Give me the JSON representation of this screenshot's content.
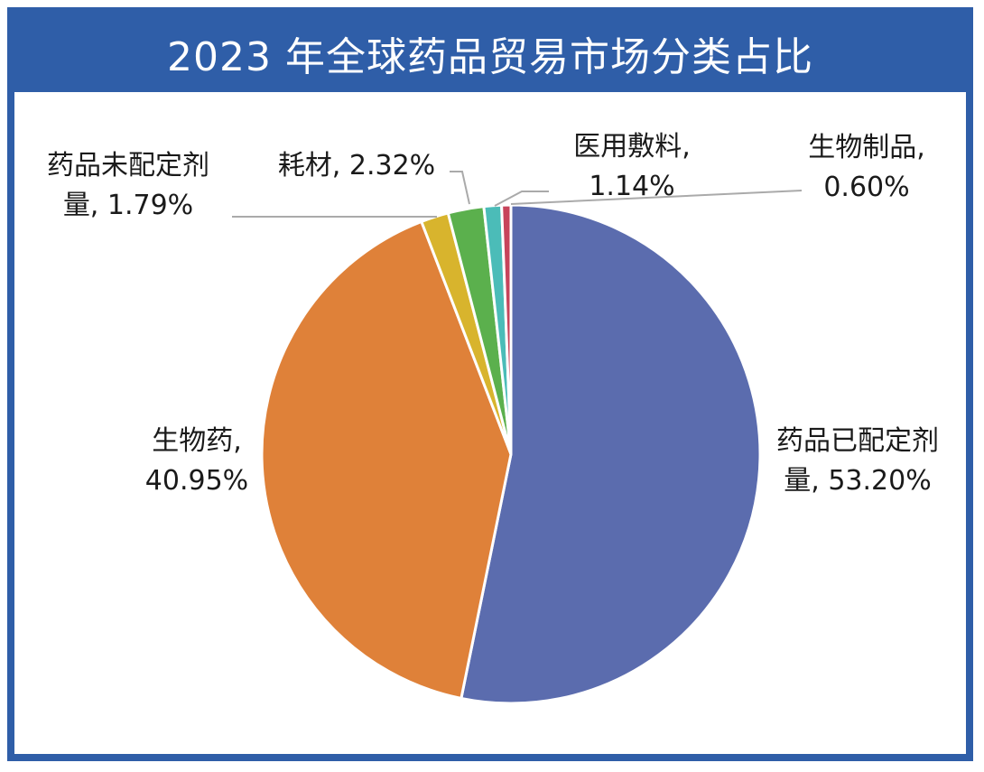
{
  "title": "2023 年全球药品贸易市场分类占比",
  "colors": {
    "frame": "#2f5ea8",
    "title_text": "#ffffff",
    "label_text": "#1a1a1a",
    "leader_line": "#aaaaaa"
  },
  "chart_data": {
    "type": "pie",
    "slices": [
      {
        "label": "药品已配定剂量",
        "value": 53.2,
        "display": "药品已配定剂\n量, 53.20%",
        "color": "#5b6cae"
      },
      {
        "label": "生物药",
        "value": 40.95,
        "display": "生物药,\n40.95%",
        "color": "#df8139"
      },
      {
        "label": "药品未配定剂量",
        "value": 1.79,
        "display": "药品未配定剂\n量, 1.79%",
        "color": "#d8b42d"
      },
      {
        "label": "耗材",
        "value": 2.32,
        "display": "耗材, 2.32%",
        "color": "#5bb04d"
      },
      {
        "label": "医用敷料",
        "value": 1.14,
        "display": "医用敷料,\n1.14%",
        "color": "#4bbcb8"
      },
      {
        "label": "生物制品",
        "value": 0.6,
        "display": "生物制品,\n0.60%",
        "color": "#c7445b"
      }
    ]
  }
}
